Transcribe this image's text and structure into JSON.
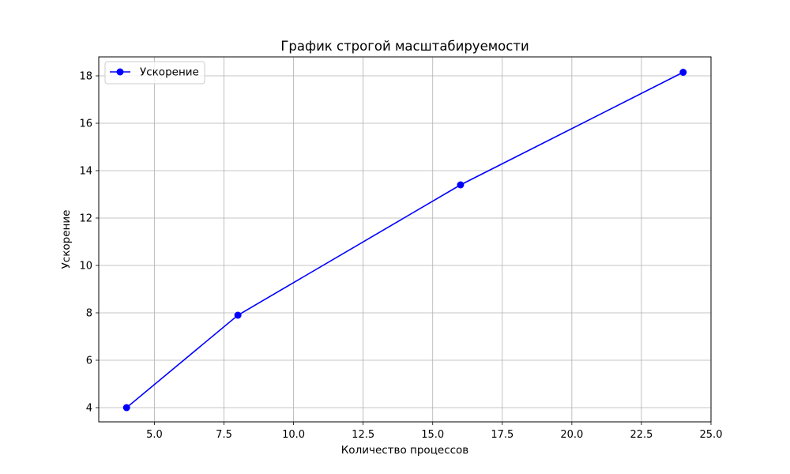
{
  "chart_data": {
    "type": "line",
    "title": "График строгой масштабируемости",
    "xlabel": "Количество процессов",
    "ylabel": "Ускорение",
    "xlim": [
      3.0,
      25.0
    ],
    "ylim": [
      3.4,
      18.8
    ],
    "xticks": [
      5.0,
      7.5,
      10.0,
      12.5,
      15.0,
      17.5,
      20.0,
      22.5,
      25.0
    ],
    "xtick_labels": [
      "5.0",
      "7.5",
      "10.0",
      "12.5",
      "15.0",
      "17.5",
      "20.0",
      "22.5",
      "25.0"
    ],
    "yticks": [
      4,
      6,
      8,
      10,
      12,
      14,
      16,
      18
    ],
    "ytick_labels": [
      "4",
      "6",
      "8",
      "10",
      "12",
      "14",
      "16",
      "18"
    ],
    "grid": true,
    "legend_position": "top-left",
    "series": [
      {
        "name": "Ускорение",
        "color": "#0000ff",
        "marker": "circle",
        "x": [
          4,
          8,
          16,
          24
        ],
        "y": [
          4.0,
          7.9,
          13.4,
          18.15
        ]
      }
    ]
  }
}
